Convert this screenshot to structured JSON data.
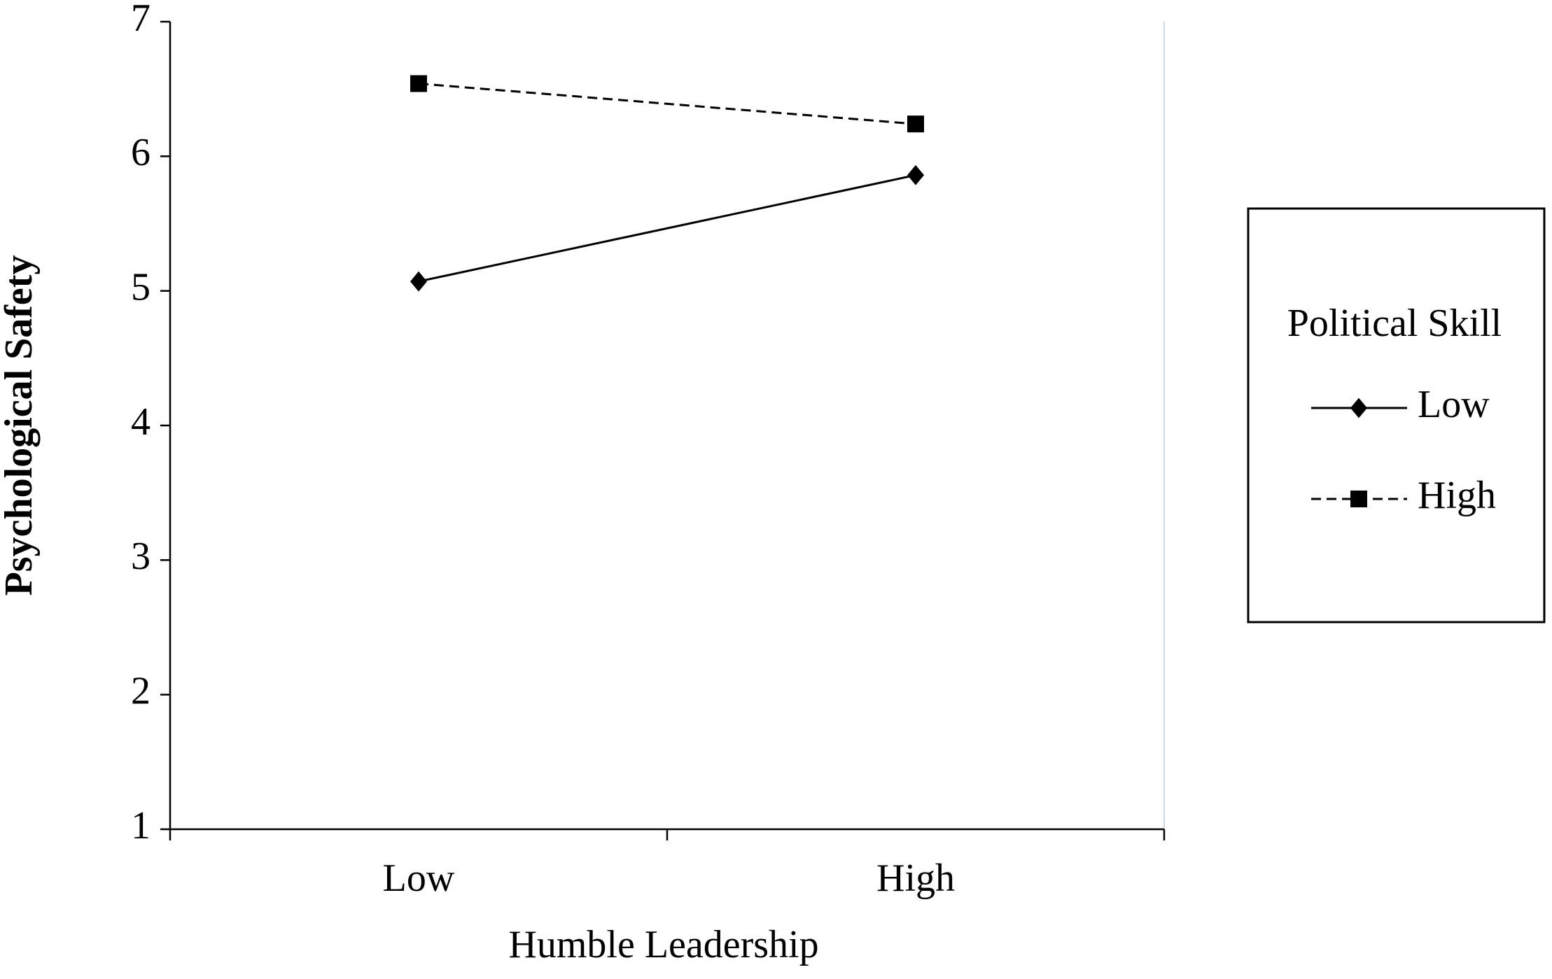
{
  "chart_data": {
    "type": "line",
    "x_label": "Humble Leadership",
    "y_label": "Psychological Safety",
    "categories": [
      "Low",
      "High"
    ],
    "series": [
      {
        "name": "Low",
        "color": "#000000",
        "line_style": "solid",
        "marker": "diamond",
        "values": [
          5.07,
          5.86
        ]
      },
      {
        "name": "High",
        "color": "#000000",
        "line_style": "dashed",
        "marker": "square",
        "values": [
          6.54,
          6.24
        ]
      }
    ],
    "ylim": [
      1,
      7
    ],
    "yticks": [
      1,
      2,
      3,
      4,
      5,
      6,
      7
    ],
    "grid": false,
    "legend": {
      "title": "Political Skill",
      "position": "right"
    }
  }
}
